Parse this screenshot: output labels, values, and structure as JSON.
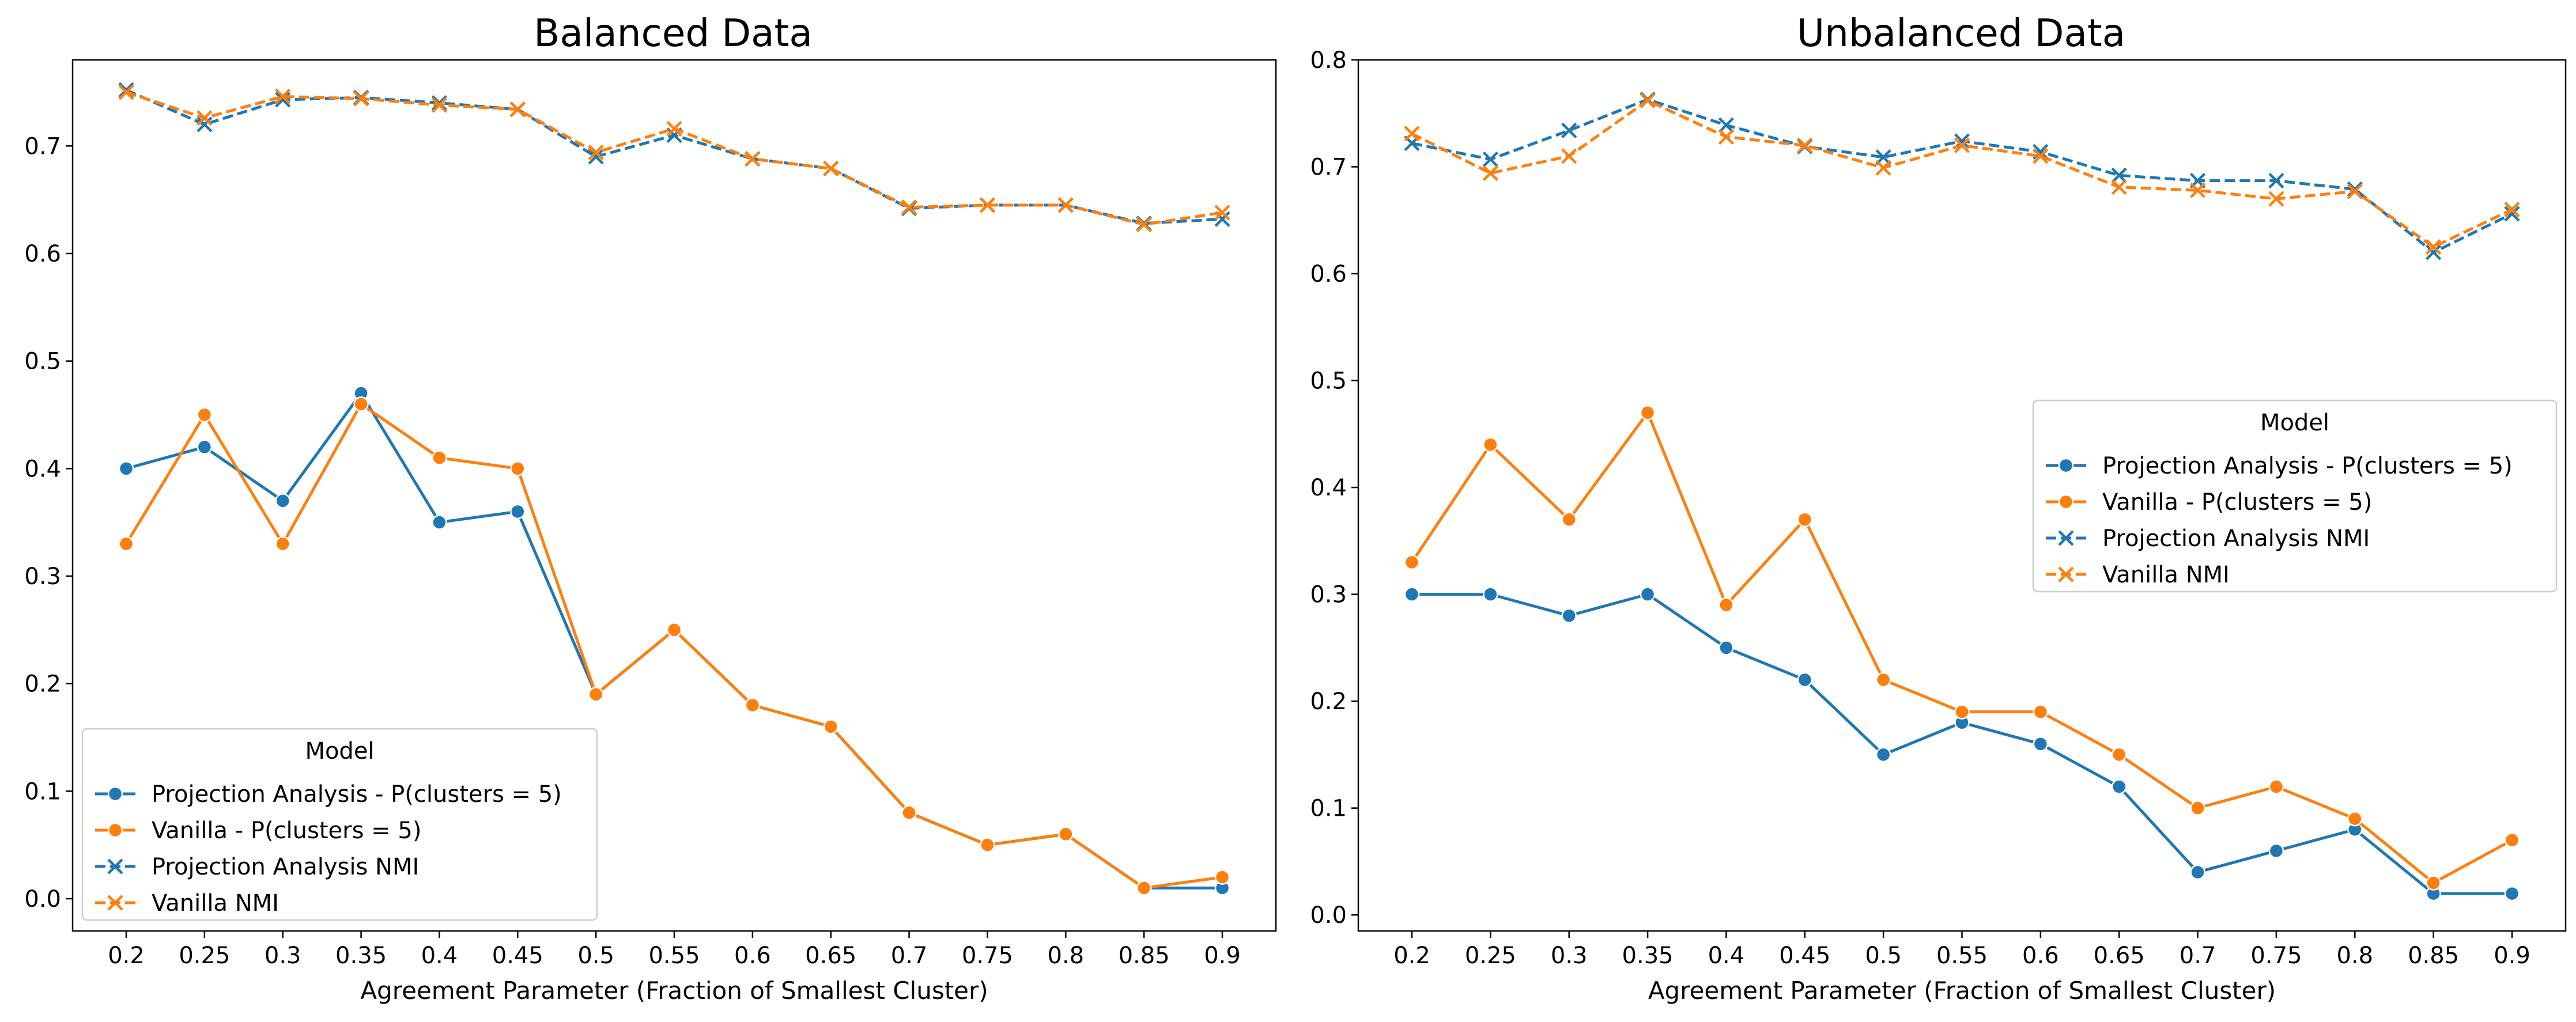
{
  "chart_data": [
    {
      "type": "line",
      "title": "Balanced Data",
      "xlabel": "Agreement Parameter (Fraction of Smallest Cluster)",
      "ylabel": "",
      "categories": [
        "0.2",
        "0.25",
        "0.3",
        "0.35",
        "0.4",
        "0.45",
        "0.5",
        "0.55",
        "0.6",
        "0.65",
        "0.7",
        "0.75",
        "0.8",
        "0.85",
        "0.9"
      ],
      "yticks": [
        "0.0",
        "0.1",
        "0.2",
        "0.3",
        "0.4",
        "0.5",
        "0.6",
        "0.7"
      ],
      "ylim": [
        -0.03,
        0.78
      ],
      "grid": false,
      "legend": {
        "title": "Model",
        "placement": "lower-left",
        "entries": [
          "Projection Analysis - P(clusters = 5)",
          "Vanilla - P(clusters = 5)",
          "Projection Analysis NMI",
          "Vanilla NMI"
        ]
      },
      "series": [
        {
          "name": "Projection Analysis - P(clusters = 5)",
          "color": "#1f77b4",
          "marker": "circle",
          "dash": "solid",
          "values": [
            0.4,
            0.42,
            0.37,
            0.47,
            0.35,
            0.36,
            0.19,
            0.25,
            0.18,
            0.16,
            0.08,
            0.05,
            0.06,
            0.01,
            0.01
          ]
        },
        {
          "name": "Vanilla - P(clusters = 5)",
          "color": "#ff7f0e",
          "marker": "circle",
          "dash": "solid",
          "values": [
            0.33,
            0.45,
            0.33,
            0.46,
            0.41,
            0.4,
            0.19,
            0.25,
            0.18,
            0.16,
            0.08,
            0.05,
            0.06,
            0.01,
            0.02
          ]
        },
        {
          "name": "Projection Analysis NMI",
          "color": "#1f77b4",
          "marker": "x",
          "dash": "dashed",
          "values": [
            0.752,
            0.72,
            0.743,
            0.745,
            0.74,
            0.734,
            0.69,
            0.71,
            0.688,
            0.679,
            0.642,
            0.645,
            0.645,
            0.628,
            0.632
          ]
        },
        {
          "name": "Vanilla NMI",
          "color": "#ff7f0e",
          "marker": "x",
          "dash": "dashed",
          "values": [
            0.75,
            0.726,
            0.746,
            0.744,
            0.738,
            0.734,
            0.694,
            0.716,
            0.688,
            0.679,
            0.643,
            0.645,
            0.645,
            0.627,
            0.638
          ]
        }
      ]
    },
    {
      "type": "line",
      "title": "Unbalanced Data",
      "xlabel": "Agreement Parameter (Fraction of Smallest Cluster)",
      "ylabel": "",
      "categories": [
        "0.2",
        "0.25",
        "0.3",
        "0.35",
        "0.4",
        "0.45",
        "0.5",
        "0.55",
        "0.6",
        "0.65",
        "0.7",
        "0.75",
        "0.8",
        "0.85",
        "0.9"
      ],
      "yticks": [
        "0.0",
        "0.1",
        "0.2",
        "0.3",
        "0.4",
        "0.5",
        "0.6",
        "0.7",
        "0.8"
      ],
      "ylim": [
        -0.015,
        0.8
      ],
      "grid": false,
      "legend": {
        "title": "Model",
        "placement": "center-right",
        "entries": [
          "Projection Analysis - P(clusters = 5)",
          "Vanilla - P(clusters = 5)",
          "Projection Analysis NMI",
          "Vanilla NMI"
        ]
      },
      "series": [
        {
          "name": "Projection Analysis - P(clusters = 5)",
          "color": "#1f77b4",
          "marker": "circle",
          "dash": "solid",
          "values": [
            0.3,
            0.3,
            0.28,
            0.3,
            0.25,
            0.22,
            0.15,
            0.18,
            0.16,
            0.12,
            0.04,
            0.06,
            0.08,
            0.02,
            0.02
          ]
        },
        {
          "name": "Vanilla - P(clusters = 5)",
          "color": "#ff7f0e",
          "marker": "circle",
          "dash": "solid",
          "values": [
            0.33,
            0.44,
            0.37,
            0.47,
            0.29,
            0.37,
            0.22,
            0.19,
            0.19,
            0.15,
            0.1,
            0.12,
            0.09,
            0.03,
            0.07
          ]
        },
        {
          "name": "Projection Analysis NMI",
          "color": "#1f77b4",
          "marker": "x",
          "dash": "dashed",
          "values": [
            0.722,
            0.707,
            0.734,
            0.763,
            0.739,
            0.719,
            0.709,
            0.724,
            0.714,
            0.692,
            0.687,
            0.687,
            0.679,
            0.62,
            0.656
          ]
        },
        {
          "name": "Vanilla NMI",
          "color": "#ff7f0e",
          "marker": "x",
          "dash": "dashed",
          "values": [
            0.731,
            0.694,
            0.71,
            0.762,
            0.728,
            0.72,
            0.699,
            0.72,
            0.71,
            0.681,
            0.678,
            0.67,
            0.677,
            0.625,
            0.66
          ]
        }
      ]
    }
  ]
}
